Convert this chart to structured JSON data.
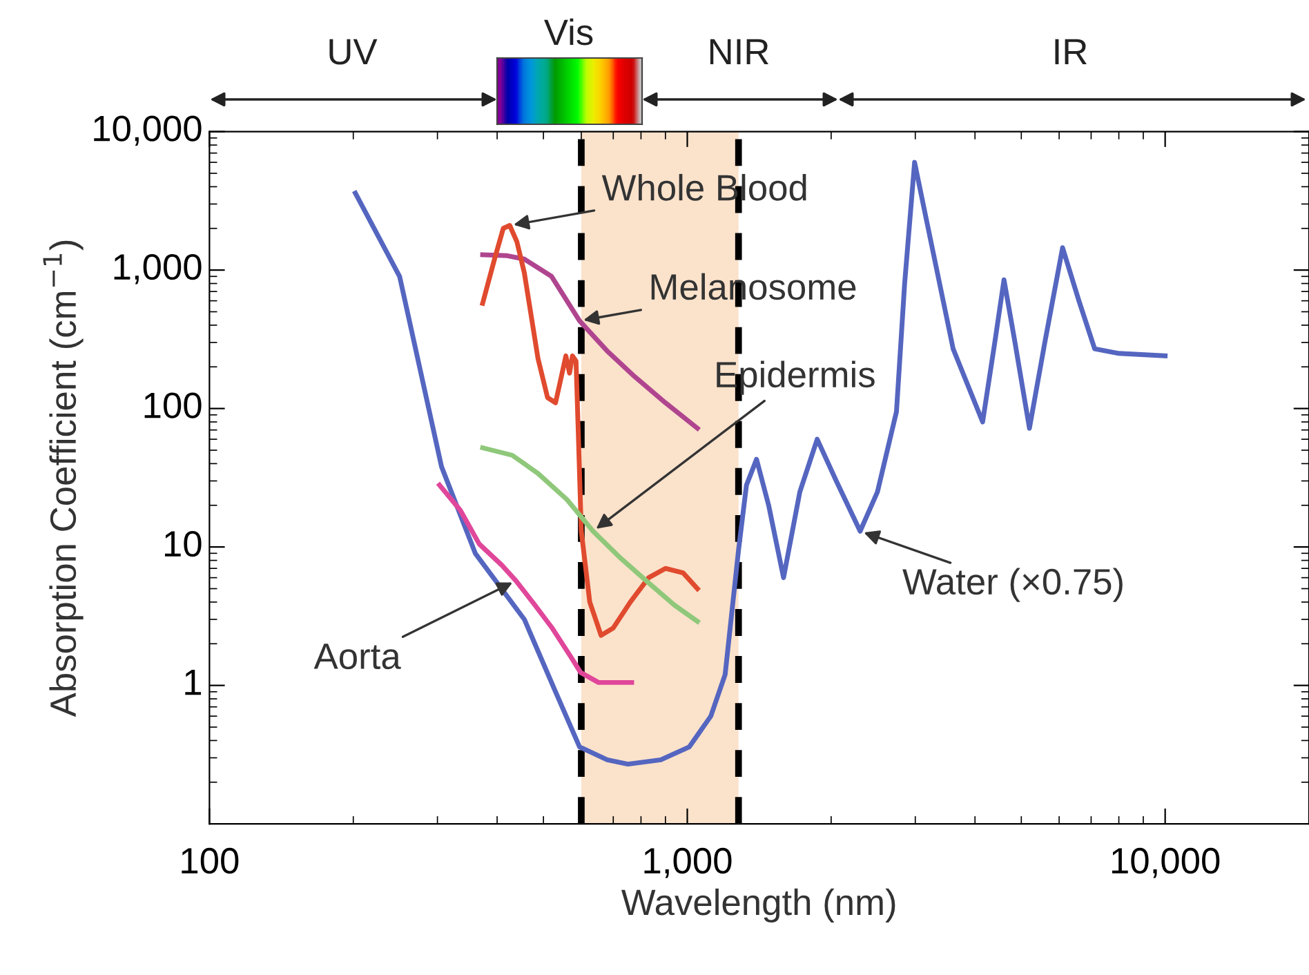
{
  "chart_data": {
    "type": "line",
    "xlabel": "Wavelength (nm)",
    "ylabel": "Absorption Coefficient (cm$^{−1}$)",
    "log": "xy",
    "xlim": [
      100,
      20000
    ],
    "ylim": [
      0.1,
      10000
    ],
    "xticks": [
      100,
      {
        "value": 1000,
        "label": "1,000"
      },
      {
        "value": 10000,
        "label": "10,000"
      }
    ],
    "yticks": [
      1,
      10,
      100,
      {
        "value": 1000,
        "label": "1,000"
      },
      {
        "value": 10000,
        "label": "10,000"
      }
    ],
    "grid": false,
    "legend": false,
    "series": [
      {
        "color": "#5566c0",
        "x": [
          202,
          250,
          306,
          360,
          456,
          530,
          595,
          680,
          751,
          880,
          1010,
          1120,
          1200,
          1280,
          1330,
          1396,
          1480,
          1590,
          1720,
          1870,
          2050,
          2300,
          2500,
          2740,
          2850,
          2990,
          3150,
          3600,
          4150,
          4400,
          4600,
          4850,
          5200,
          5600,
          6100,
          6600,
          7120,
          8000,
          10000
        ],
        "values": [
          3600,
          900,
          38,
          9,
          3,
          0.9,
          0.36,
          0.29,
          0.27,
          0.29,
          0.36,
          0.6,
          1.2,
          9.5,
          28,
          43,
          20,
          6,
          25,
          60,
          30,
          13,
          25,
          95,
          800,
          6000,
          2500,
          270,
          80,
          300,
          850,
          300,
          72,
          300,
          1450,
          600,
          270,
          250,
          240
        ]
      },
      {
        "color": "#b0458f",
        "x": [
          373,
          420,
          456,
          520,
          595,
          680,
          776,
          900,
          1050
        ],
        "values": [
          1290,
          1270,
          1200,
          900,
          430,
          260,
          170,
          110,
          72
        ]
      },
      {
        "color": "#e04a2e",
        "x": [
          373,
          395,
          412,
          425,
          440,
          456,
          487,
          510,
          530,
          545,
          557,
          567,
          575,
          585,
          592,
          600,
          625,
          660,
          700,
          760,
          830,
          900,
          980,
          1050
        ],
        "values": [
          575,
          1200,
          2000,
          2100,
          1600,
          955,
          230,
          120,
          110,
          170,
          240,
          180,
          240,
          220,
          60,
          13,
          4,
          2.3,
          2.6,
          4,
          6,
          7,
          6.5,
          5
        ]
      },
      {
        "color": "#8fc87a",
        "x": [
          373,
          430,
          487,
          560,
          635,
          720,
          830,
          940,
          1050
        ],
        "values": [
          52,
          46,
          34,
          22,
          13,
          8.5,
          5.5,
          3.8,
          2.9
        ]
      },
      {
        "color": "#e0479a",
        "x": [
          303,
          335,
          367,
          409,
          438,
          480,
          523,
          571,
          598,
          652,
          765
        ],
        "values": [
          28,
          18.4,
          10.5,
          7.4,
          5.7,
          3.8,
          2.56,
          1.6,
          1.24,
          1.05,
          1.05
        ]
      }
    ],
    "bands": [
      {
        "axis": "x",
        "from": 600,
        "to": 1280,
        "color": "#fbe2cb"
      }
    ],
    "ref_lines": [
      {
        "axis": "x",
        "value": 600,
        "color": "#000000",
        "line_style": "dashed"
      },
      {
        "axis": "x",
        "value": 1280,
        "color": "#000000",
        "line_style": "dashed"
      }
    ],
    "annotations": [
      {
        "text": "Whole Blood",
        "x": 425,
        "y": 2100
      },
      {
        "text": "Melanosome",
        "x": 595,
        "y": 430
      },
      {
        "text": "Epidermis",
        "x": 635,
        "y": 13
      },
      {
        "text": "Aorta",
        "x": 438,
        "y": 5.7
      },
      {
        "text": "Water (×0.75)",
        "x": 2300,
        "y": 13
      },
      "UV",
      "Vis",
      "NIR",
      "IR"
    ]
  }
}
